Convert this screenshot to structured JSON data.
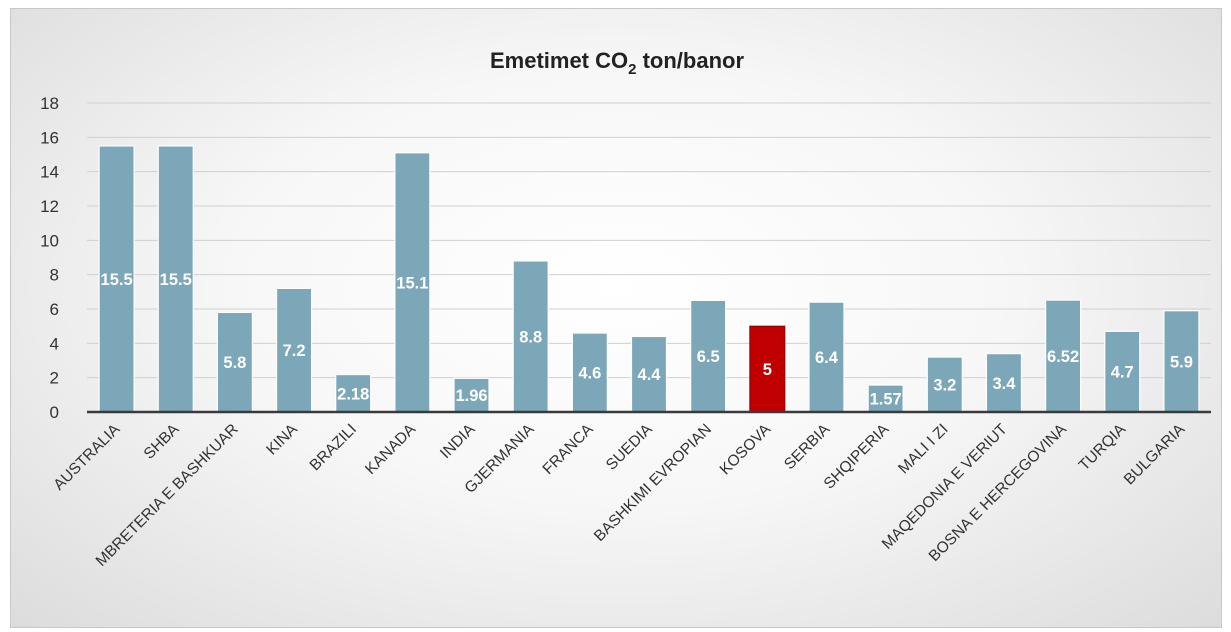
{
  "chart_data": {
    "type": "bar",
    "title": "Emetimet CO",
    "title_subscript": "2",
    "title_suffix": " ton/banor",
    "xlabel": "",
    "ylabel": "",
    "ylim": [
      0,
      18
    ],
    "y_ticks": [
      "0",
      "2",
      "4",
      "6",
      "8",
      "10",
      "12",
      "14",
      "16",
      "18"
    ],
    "grid": true,
    "legend": "none",
    "colors": {
      "bar": "#7ba7b8",
      "highlight": "#c00000",
      "gridline": "#d0d0d0",
      "axis": "#3a3a3a"
    },
    "categories": [
      "AUSTRALIA",
      "SHBA",
      "MBRETERIA E BASHKUAR",
      "KINA",
      "BRAZILI",
      "KANADA",
      "INDIA",
      "GJERMANIA",
      "FRANCA",
      "SUEDIA",
      "BASHKIMI EVROPIAN",
      "KOSOVA",
      "SERBIA",
      "SHQIPERIA",
      "MALI I ZI",
      "MAQEDONIA E VERIUT",
      "BOSNA E HERCEGOVINA",
      "TURQIA",
      "BULGARIA"
    ],
    "values": [
      15.5,
      15.5,
      5.8,
      7.2,
      2.18,
      15.1,
      1.96,
      8.8,
      4.6,
      4.4,
      6.5,
      5,
      6.4,
      1.57,
      3.2,
      3.4,
      6.52,
      4.7,
      5.9
    ],
    "value_labels": [
      "15.5",
      "15.5",
      "5.8",
      "7.2",
      "2.18",
      "15.1",
      "1.96",
      "8.8",
      "4.6",
      "4.4",
      "6.5",
      "5",
      "6.4",
      "1.57",
      "3.2",
      "3.4",
      "6.52",
      "4.7",
      "5.9"
    ],
    "highlight_category": "KOSOVA"
  }
}
